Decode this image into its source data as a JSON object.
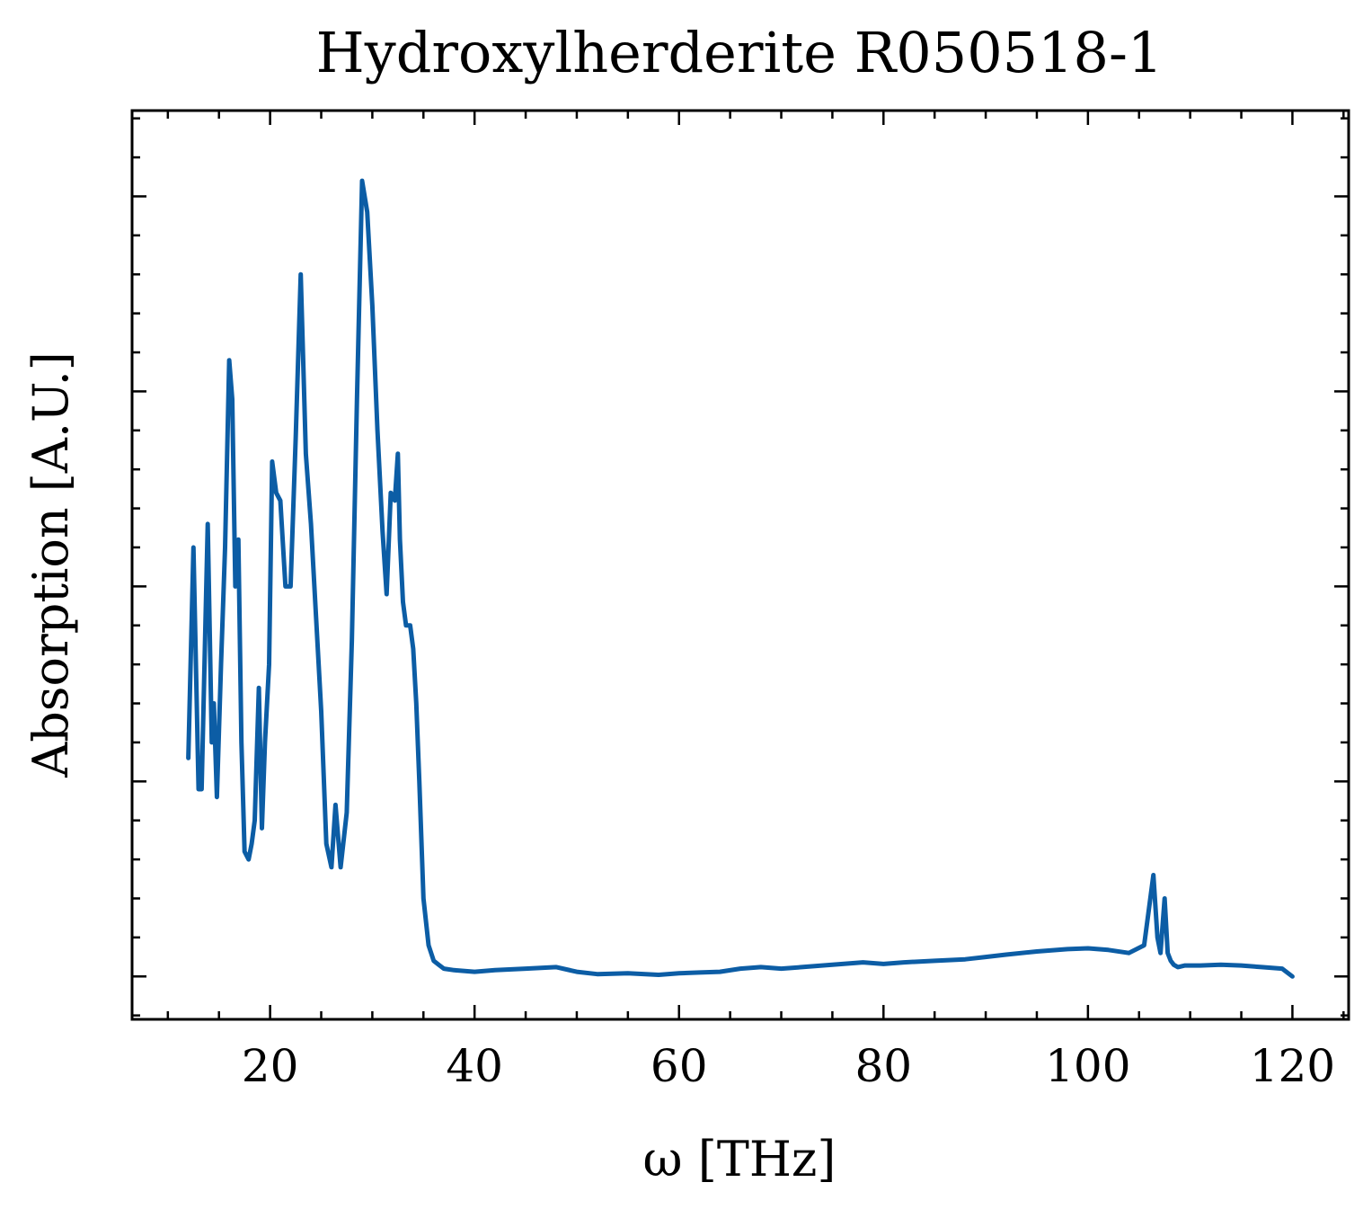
{
  "chart_data": {
    "type": "line",
    "title": "Hydroxylherderite R050518-1",
    "xlabel": "ω [THz]",
    "ylabel": "Absorption [A.U.]",
    "xlim": [
      6.5,
      125.5
    ],
    "ylim": [
      -0.055,
      1.11
    ],
    "x_ticks": [
      20,
      40,
      60,
      80,
      100,
      120
    ],
    "x_minor_step": 5,
    "y_major_ticks": [
      0.0,
      0.25,
      0.5,
      0.75,
      1.0
    ],
    "y_minor_step": 0.05,
    "y_tick_labels_shown": false,
    "grid": false,
    "legend": "none",
    "color": "#0C5DA5",
    "series": [
      {
        "x": [
          12.0,
          12.5,
          13.0,
          13.3,
          13.9,
          14.3,
          14.5,
          14.8,
          15.2,
          15.6,
          16.0,
          16.3,
          16.6,
          16.9,
          17.2,
          17.5,
          17.9,
          18.2,
          18.5,
          18.9,
          19.2,
          19.5,
          19.9,
          20.2,
          20.6,
          21.0,
          21.5,
          22.0,
          22.5,
          23.0,
          23.5,
          24.0,
          24.5,
          25.0,
          25.5,
          26.0,
          26.4,
          26.9,
          27.5,
          28.0,
          28.5,
          29.0,
          29.5,
          30.0,
          30.5,
          31.0,
          31.4,
          31.8,
          32.2,
          32.5,
          32.7,
          33.0,
          33.3,
          33.7,
          34.0,
          34.3,
          34.6,
          35.0,
          35.5,
          36.0,
          36.5,
          37.0,
          38.0,
          40.0,
          42.0,
          45.0,
          48.0,
          50.0,
          52.0,
          55.0,
          58.0,
          60.0,
          62.0,
          64.0,
          66.0,
          68.0,
          70.0,
          72.0,
          75.0,
          78.0,
          80.0,
          82.0,
          85.0,
          88.0,
          90.0,
          92.0,
          95.0,
          98.0,
          100.0,
          102.0,
          104.0,
          105.5,
          106.4,
          106.8,
          107.1,
          107.5,
          107.8,
          108.1,
          108.4,
          108.8,
          109.5,
          111.0,
          113.0,
          115.0,
          117.0,
          119.0,
          120.0
        ],
        "values": [
          0.28,
          0.55,
          0.24,
          0.24,
          0.58,
          0.3,
          0.35,
          0.23,
          0.4,
          0.55,
          0.79,
          0.74,
          0.5,
          0.56,
          0.3,
          0.16,
          0.15,
          0.17,
          0.2,
          0.37,
          0.19,
          0.3,
          0.4,
          0.66,
          0.62,
          0.61,
          0.5,
          0.5,
          0.69,
          0.9,
          0.67,
          0.58,
          0.46,
          0.34,
          0.17,
          0.14,
          0.22,
          0.14,
          0.21,
          0.43,
          0.74,
          1.02,
          0.98,
          0.86,
          0.7,
          0.57,
          0.49,
          0.62,
          0.61,
          0.67,
          0.56,
          0.48,
          0.45,
          0.45,
          0.42,
          0.35,
          0.25,
          0.1,
          0.04,
          0.02,
          0.015,
          0.01,
          0.008,
          0.006,
          0.008,
          0.01,
          0.012,
          0.006,
          0.003,
          0.004,
          0.002,
          0.004,
          0.005,
          0.006,
          0.01,
          0.012,
          0.01,
          0.012,
          0.015,
          0.018,
          0.016,
          0.018,
          0.02,
          0.022,
          0.025,
          0.028,
          0.032,
          0.035,
          0.036,
          0.034,
          0.03,
          0.04,
          0.13,
          0.05,
          0.03,
          0.1,
          0.03,
          0.02,
          0.015,
          0.012,
          0.014,
          0.014,
          0.015,
          0.014,
          0.012,
          0.01,
          0.0
        ]
      }
    ]
  }
}
